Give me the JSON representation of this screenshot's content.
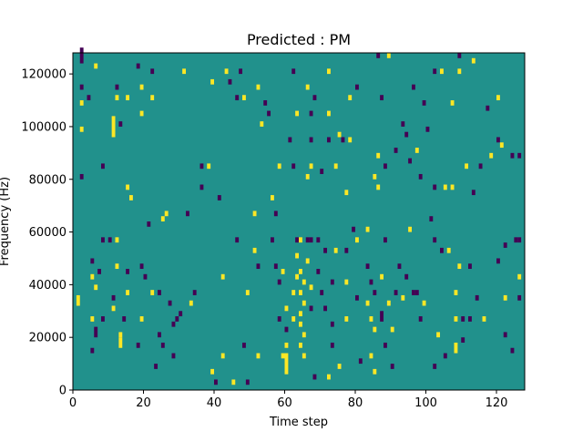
{
  "chart_data": {
    "type": "heatmap",
    "title": "Predicted : PM",
    "xlabel": "Time step",
    "ylabel": "Frequency (Hz)",
    "xlim": [
      0,
      128
    ],
    "ylim": [
      0,
      128000
    ],
    "x_ticks": [
      0,
      20,
      40,
      60,
      80,
      100,
      120
    ],
    "y_ticks": [
      0,
      20000,
      40000,
      60000,
      80000,
      100000,
      120000
    ],
    "x_tick_labels": [
      "0",
      "20",
      "40",
      "60",
      "80",
      "100",
      "120"
    ],
    "y_tick_labels": [
      "0",
      "20000",
      "40000",
      "60000",
      "80000",
      "100000",
      "120000"
    ],
    "colormap": "viridis",
    "colors": {
      "background": "#21918c",
      "high": "#fde725",
      "low": "#440154"
    },
    "background_value": 0,
    "cell_height": 2000,
    "cells": [
      {
        "t": 2,
        "f": 124000,
        "v": -1,
        "h": 6000
      },
      {
        "t": 2,
        "f": 114000,
        "v": -1
      },
      {
        "t": 2,
        "f": 108000,
        "v": 1
      },
      {
        "t": 2,
        "f": 98000,
        "v": 1
      },
      {
        "t": 2,
        "f": 80000,
        "v": -1
      },
      {
        "t": 1,
        "f": 32000,
        "v": 1,
        "h": 4000
      },
      {
        "t": 4,
        "f": 110000,
        "v": -1
      },
      {
        "t": 5,
        "f": 48000,
        "v": -1
      },
      {
        "t": 5,
        "f": 42000,
        "v": 1
      },
      {
        "t": 5,
        "f": 26000,
        "v": 1
      },
      {
        "t": 5,
        "f": 14000,
        "v": -1
      },
      {
        "t": 6,
        "f": 122000,
        "v": 1
      },
      {
        "t": 6,
        "f": 38000,
        "v": 1
      },
      {
        "t": 6,
        "f": 20000,
        "v": -1,
        "h": 4000
      },
      {
        "t": 7,
        "f": 44000,
        "v": -1
      },
      {
        "t": 8,
        "f": 84000,
        "v": -1
      },
      {
        "t": 8,
        "f": 56000,
        "v": -1
      },
      {
        "t": 8,
        "f": 26000,
        "v": -1
      },
      {
        "t": 10,
        "f": 56000,
        "v": -1
      },
      {
        "t": 11,
        "f": 96000,
        "v": 1,
        "h": 8000
      },
      {
        "t": 11,
        "f": 34000,
        "v": -1
      },
      {
        "t": 11,
        "f": 30000,
        "v": 1
      },
      {
        "t": 12,
        "f": 114000,
        "v": -1
      },
      {
        "t": 12,
        "f": 110000,
        "v": 1
      },
      {
        "t": 12,
        "f": 56000,
        "v": 1
      },
      {
        "t": 12,
        "f": 46000,
        "v": 1
      },
      {
        "t": 13,
        "f": 100000,
        "v": -1
      },
      {
        "t": 13,
        "f": 20000,
        "v": 1
      },
      {
        "t": 13,
        "f": 16000,
        "v": 1,
        "h": 4000
      },
      {
        "t": 14,
        "f": 26000,
        "v": -1
      },
      {
        "t": 15,
        "f": 76000,
        "v": 1
      },
      {
        "t": 15,
        "f": 110000,
        "v": 1
      },
      {
        "t": 15,
        "f": 44000,
        "v": -1
      },
      {
        "t": 15,
        "f": 36000,
        "v": 1
      },
      {
        "t": 16,
        "f": 72000,
        "v": 1
      },
      {
        "t": 18,
        "f": 122000,
        "v": -1
      },
      {
        "t": 18,
        "f": 16000,
        "v": -1
      },
      {
        "t": 19,
        "f": 114000,
        "v": 1
      },
      {
        "t": 19,
        "f": 104000,
        "v": 1
      },
      {
        "t": 19,
        "f": 46000,
        "v": -1
      },
      {
        "t": 19,
        "f": 26000,
        "v": 1
      },
      {
        "t": 20,
        "f": 42000,
        "v": -1
      },
      {
        "t": 21,
        "f": 62000,
        "v": -1
      },
      {
        "t": 22,
        "f": 120000,
        "v": -1
      },
      {
        "t": 22,
        "f": 110000,
        "v": 1
      },
      {
        "t": 22,
        "f": 36000,
        "v": 1
      },
      {
        "t": 23,
        "f": 8000,
        "v": -1
      },
      {
        "t": 24,
        "f": 36000,
        "v": -1
      },
      {
        "t": 24,
        "f": 20000,
        "v": -1
      },
      {
        "t": 25,
        "f": 64000,
        "v": 1
      },
      {
        "t": 25,
        "f": 16000,
        "v": -1
      },
      {
        "t": 26,
        "f": 66000,
        "v": 1
      },
      {
        "t": 27,
        "f": 32000,
        "v": -1
      },
      {
        "t": 28,
        "f": 24000,
        "v": -1
      },
      {
        "t": 28,
        "f": 12000,
        "v": -1
      },
      {
        "t": 29,
        "f": 26000,
        "v": -1
      },
      {
        "t": 30,
        "f": 28000,
        "v": -1
      },
      {
        "t": 31,
        "f": 120000,
        "v": 1
      },
      {
        "t": 32,
        "f": 66000,
        "v": -1
      },
      {
        "t": 33,
        "f": 32000,
        "v": 1
      },
      {
        "t": 34,
        "f": 36000,
        "v": -1
      },
      {
        "t": 36,
        "f": 84000,
        "v": -1
      },
      {
        "t": 36,
        "f": 76000,
        "v": -1
      },
      {
        "t": 38,
        "f": 84000,
        "v": 1
      },
      {
        "t": 39,
        "f": 116000,
        "v": 1
      },
      {
        "t": 39,
        "f": 6000,
        "v": 1
      },
      {
        "t": 40,
        "f": 2000,
        "v": -1
      },
      {
        "t": 41,
        "f": 72000,
        "v": -1
      },
      {
        "t": 42,
        "f": 42000,
        "v": 1
      },
      {
        "t": 42,
        "f": 12000,
        "v": 1
      },
      {
        "t": 43,
        "f": 120000,
        "v": 1
      },
      {
        "t": 44,
        "f": 116000,
        "v": -1
      },
      {
        "t": 45,
        "f": 2000,
        "v": 1
      },
      {
        "t": 46,
        "f": 56000,
        "v": -1
      },
      {
        "t": 46,
        "f": 110000,
        "v": -1
      },
      {
        "t": 47,
        "f": 120000,
        "v": -1
      },
      {
        "t": 48,
        "f": 110000,
        "v": 1
      },
      {
        "t": 48,
        "f": 16000,
        "v": -1
      },
      {
        "t": 49,
        "f": 36000,
        "v": 1
      },
      {
        "t": 49,
        "f": 2000,
        "v": -1
      },
      {
        "t": 51,
        "f": 66000,
        "v": 1
      },
      {
        "t": 51,
        "f": 52000,
        "v": 1
      },
      {
        "t": 52,
        "f": 114000,
        "v": 1
      },
      {
        "t": 52,
        "f": 46000,
        "v": -1
      },
      {
        "t": 52,
        "f": 12000,
        "v": 1
      },
      {
        "t": 53,
        "f": 100000,
        "v": 1
      },
      {
        "t": 54,
        "f": 108000,
        "v": -1
      },
      {
        "t": 55,
        "f": 104000,
        "v": -1
      },
      {
        "t": 56,
        "f": 72000,
        "v": 1
      },
      {
        "t": 56,
        "f": 56000,
        "v": -1
      },
      {
        "t": 57,
        "f": 66000,
        "v": -1
      },
      {
        "t": 57,
        "f": 46000,
        "v": -1
      },
      {
        "t": 58,
        "f": 84000,
        "v": 1
      },
      {
        "t": 58,
        "f": 40000,
        "v": -1
      },
      {
        "t": 58,
        "f": 26000,
        "v": -1
      },
      {
        "t": 59,
        "f": 12000,
        "v": 1
      },
      {
        "t": 59,
        "f": 44000,
        "v": 1
      },
      {
        "t": 60,
        "f": 6000,
        "v": 1,
        "h": 8000
      },
      {
        "t": 60,
        "f": 16000,
        "v": 1
      },
      {
        "t": 60,
        "f": 22000,
        "v": -1
      },
      {
        "t": 60,
        "f": 30000,
        "v": 1
      },
      {
        "t": 61,
        "f": 94000,
        "v": -1
      },
      {
        "t": 62,
        "f": 84000,
        "v": -1
      },
      {
        "t": 62,
        "f": 120000,
        "v": -1
      },
      {
        "t": 62,
        "f": 36000,
        "v": 1
      },
      {
        "t": 62,
        "f": 26000,
        "v": 1
      },
      {
        "t": 63,
        "f": 104000,
        "v": 1
      },
      {
        "t": 63,
        "f": 42000,
        "v": 1
      },
      {
        "t": 63,
        "f": 56000,
        "v": -1
      },
      {
        "t": 63,
        "f": 50000,
        "v": 1
      },
      {
        "t": 64,
        "f": 56000,
        "v": 1
      },
      {
        "t": 64,
        "f": 44000,
        "v": 1
      },
      {
        "t": 64,
        "f": 36000,
        "v": 1
      },
      {
        "t": 64,
        "f": 28000,
        "v": 1
      },
      {
        "t": 64,
        "f": 24000,
        "v": 1
      },
      {
        "t": 64,
        "f": 16000,
        "v": 1
      },
      {
        "t": 65,
        "f": 40000,
        "v": 1
      },
      {
        "t": 65,
        "f": 32000,
        "v": 1
      },
      {
        "t": 65,
        "f": 20000,
        "v": 1
      },
      {
        "t": 65,
        "f": 12000,
        "v": 1
      },
      {
        "t": 66,
        "f": 114000,
        "v": 1
      },
      {
        "t": 66,
        "f": 80000,
        "v": 1
      },
      {
        "t": 66,
        "f": 56000,
        "v": -1
      },
      {
        "t": 66,
        "f": 48000,
        "v": 1
      },
      {
        "t": 67,
        "f": 104000,
        "v": -1
      },
      {
        "t": 67,
        "f": 94000,
        "v": -1
      },
      {
        "t": 67,
        "f": 84000,
        "v": 1
      },
      {
        "t": 67,
        "f": 56000,
        "v": -1
      },
      {
        "t": 67,
        "f": 38000,
        "v": 1
      },
      {
        "t": 67,
        "f": 30000,
        "v": -1
      },
      {
        "t": 68,
        "f": 110000,
        "v": -1
      },
      {
        "t": 68,
        "f": 4000,
        "v": -1
      },
      {
        "t": 69,
        "f": 56000,
        "v": -1
      },
      {
        "t": 69,
        "f": 44000,
        "v": -1
      },
      {
        "t": 70,
        "f": 82000,
        "v": -1
      },
      {
        "t": 70,
        "f": 36000,
        "v": -1
      },
      {
        "t": 71,
        "f": 52000,
        "v": -1
      },
      {
        "t": 71,
        "f": 30000,
        "v": -1
      },
      {
        "t": 72,
        "f": 120000,
        "v": 1
      },
      {
        "t": 72,
        "f": 104000,
        "v": 1
      },
      {
        "t": 72,
        "f": 94000,
        "v": -1
      },
      {
        "t": 72,
        "f": 4000,
        "v": 1
      },
      {
        "t": 73,
        "f": 40000,
        "v": -1
      },
      {
        "t": 73,
        "f": 24000,
        "v": -1
      },
      {
        "t": 73,
        "f": 16000,
        "v": -1
      },
      {
        "t": 74,
        "f": 84000,
        "v": 1
      },
      {
        "t": 74,
        "f": 52000,
        "v": 1
      },
      {
        "t": 75,
        "f": 96000,
        "v": 1
      },
      {
        "t": 75,
        "f": 8000,
        "v": 1
      },
      {
        "t": 76,
        "f": 94000,
        "v": -1
      },
      {
        "t": 77,
        "f": 74000,
        "v": 1
      },
      {
        "t": 77,
        "f": 52000,
        "v": -1
      },
      {
        "t": 77,
        "f": 40000,
        "v": 1
      },
      {
        "t": 77,
        "f": 26000,
        "v": 1
      },
      {
        "t": 78,
        "f": 110000,
        "v": 1
      },
      {
        "t": 78,
        "f": 94000,
        "v": 1
      },
      {
        "t": 79,
        "f": 60000,
        "v": -1
      },
      {
        "t": 80,
        "f": 114000,
        "v": -1
      },
      {
        "t": 80,
        "f": 56000,
        "v": 1
      },
      {
        "t": 80,
        "f": 34000,
        "v": -1
      },
      {
        "t": 81,
        "f": 10000,
        "v": -1
      },
      {
        "t": 83,
        "f": 60000,
        "v": 1
      },
      {
        "t": 83,
        "f": 46000,
        "v": -1
      },
      {
        "t": 83,
        "f": 32000,
        "v": 1
      },
      {
        "t": 84,
        "f": 40000,
        "v": -1
      },
      {
        "t": 84,
        "f": 26000,
        "v": 1
      },
      {
        "t": 84,
        "f": 12000,
        "v": 1
      },
      {
        "t": 85,
        "f": 80000,
        "v": 1
      },
      {
        "t": 85,
        "f": 36000,
        "v": -1
      },
      {
        "t": 85,
        "f": 22000,
        "v": 1
      },
      {
        "t": 85,
        "f": 6000,
        "v": 1
      },
      {
        "t": 86,
        "f": 76000,
        "v": 1
      },
      {
        "t": 86,
        "f": 88000,
        "v": 1
      },
      {
        "t": 86,
        "f": 126000,
        "v": -1
      },
      {
        "t": 87,
        "f": 110000,
        "v": -1
      },
      {
        "t": 87,
        "f": 42000,
        "v": 1
      },
      {
        "t": 87,
        "f": 26000,
        "v": -1,
        "h": 4000
      },
      {
        "t": 88,
        "f": 84000,
        "v": -1
      },
      {
        "t": 88,
        "f": 56000,
        "v": -1
      },
      {
        "t": 88,
        "f": 16000,
        "v": -1
      },
      {
        "t": 89,
        "f": 126000,
        "v": 1
      },
      {
        "t": 89,
        "f": 32000,
        "v": 1
      },
      {
        "t": 90,
        "f": 22000,
        "v": 1
      },
      {
        "t": 90,
        "f": 8000,
        "v": -1
      },
      {
        "t": 91,
        "f": 90000,
        "v": -1
      },
      {
        "t": 91,
        "f": 36000,
        "v": -1
      },
      {
        "t": 92,
        "f": 46000,
        "v": -1
      },
      {
        "t": 93,
        "f": 100000,
        "v": -1
      },
      {
        "t": 93,
        "f": 34000,
        "v": 1
      },
      {
        "t": 94,
        "f": 96000,
        "v": -1
      },
      {
        "t": 94,
        "f": 42000,
        "v": -1
      },
      {
        "t": 95,
        "f": 60000,
        "v": 1
      },
      {
        "t": 95,
        "f": 86000,
        "v": -1
      },
      {
        "t": 96,
        "f": 114000,
        "v": -1
      },
      {
        "t": 96,
        "f": 36000,
        "v": -1
      },
      {
        "t": 97,
        "f": 90000,
        "v": 1
      },
      {
        "t": 97,
        "f": 36000,
        "v": -1
      },
      {
        "t": 98,
        "f": 80000,
        "v": -1
      },
      {
        "t": 98,
        "f": 26000,
        "v": -1
      },
      {
        "t": 99,
        "f": 32000,
        "v": 1
      },
      {
        "t": 99,
        "f": 108000,
        "v": -1
      },
      {
        "t": 100,
        "f": 98000,
        "v": -1
      },
      {
        "t": 101,
        "f": 64000,
        "v": -1
      },
      {
        "t": 102,
        "f": 76000,
        "v": -1
      },
      {
        "t": 102,
        "f": 120000,
        "v": -1
      },
      {
        "t": 102,
        "f": 56000,
        "v": -1
      },
      {
        "t": 102,
        "f": 8000,
        "v": -1
      },
      {
        "t": 103,
        "f": 20000,
        "v": 1
      },
      {
        "t": 104,
        "f": 120000,
        "v": 1
      },
      {
        "t": 104,
        "f": 52000,
        "v": -1
      },
      {
        "t": 105,
        "f": 76000,
        "v": 1
      },
      {
        "t": 105,
        "f": 12000,
        "v": -1
      },
      {
        "t": 106,
        "f": 52000,
        "v": 1
      },
      {
        "t": 107,
        "f": 108000,
        "v": 1
      },
      {
        "t": 107,
        "f": 76000,
        "v": 1
      },
      {
        "t": 108,
        "f": 36000,
        "v": 1
      },
      {
        "t": 108,
        "f": 26000,
        "v": 1
      },
      {
        "t": 108,
        "f": 14000,
        "v": 1,
        "h": 4000
      },
      {
        "t": 109,
        "f": 46000,
        "v": 1
      },
      {
        "t": 109,
        "f": 126000,
        "v": -1
      },
      {
        "t": 109,
        "f": 120000,
        "v": 1
      },
      {
        "t": 110,
        "f": 26000,
        "v": -1
      },
      {
        "t": 110,
        "f": 18000,
        "v": -1
      },
      {
        "t": 111,
        "f": 84000,
        "v": 1
      },
      {
        "t": 112,
        "f": 46000,
        "v": -1
      },
      {
        "t": 112,
        "f": 26000,
        "v": -1
      },
      {
        "t": 113,
        "f": 124000,
        "v": 1
      },
      {
        "t": 113,
        "f": 74000,
        "v": -1
      },
      {
        "t": 114,
        "f": 34000,
        "v": -1
      },
      {
        "t": 115,
        "f": 84000,
        "v": -1
      },
      {
        "t": 116,
        "f": 26000,
        "v": 1
      },
      {
        "t": 117,
        "f": 106000,
        "v": -1
      },
      {
        "t": 118,
        "f": 88000,
        "v": 1
      },
      {
        "t": 120,
        "f": 110000,
        "v": 1
      },
      {
        "t": 120,
        "f": 48000,
        "v": -1
      },
      {
        "t": 120,
        "f": 94000,
        "v": -1
      },
      {
        "t": 121,
        "f": 92000,
        "v": 1
      },
      {
        "t": 122,
        "f": 20000,
        "v": -1
      },
      {
        "t": 122,
        "f": 54000,
        "v": -1
      },
      {
        "t": 122,
        "f": 34000,
        "v": 1
      },
      {
        "t": 124,
        "f": 14000,
        "v": -1
      },
      {
        "t": 124,
        "f": 88000,
        "v": -1
      },
      {
        "t": 125,
        "f": 56000,
        "v": -1
      },
      {
        "t": 126,
        "f": 56000,
        "v": -1
      },
      {
        "t": 126,
        "f": 88000,
        "v": -1
      },
      {
        "t": 126,
        "f": 42000,
        "v": 1
      },
      {
        "t": 126,
        "f": 34000,
        "v": -1
      }
    ]
  }
}
